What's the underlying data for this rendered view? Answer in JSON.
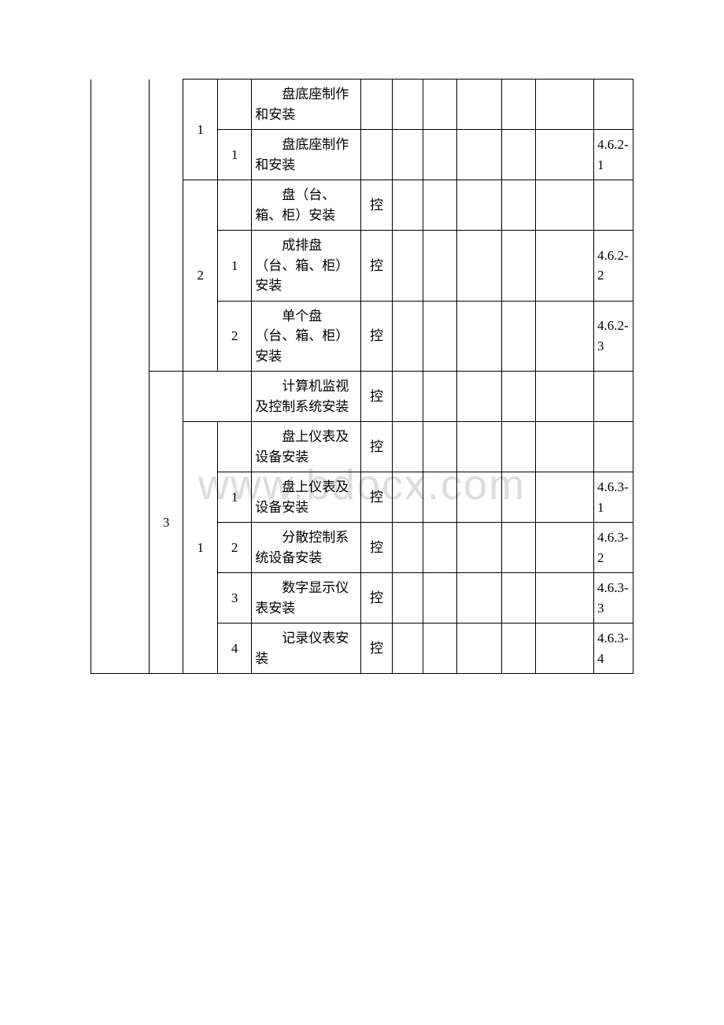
{
  "watermark": "www.bdocx.com",
  "rows": [
    {
      "c2": "",
      "c3": "",
      "c4": "",
      "c5": "　　盘底座制作和安装",
      "c6": "",
      "c12": ""
    },
    {
      "c2": "",
      "c3": "1",
      "c4": "1",
      "c5": "　　盘底座制作和安装",
      "c6": "",
      "c12": "4.6.2-1"
    },
    {
      "c2": "",
      "c3": "",
      "c4": "",
      "c5": "　　盘（台、箱、柜）安装",
      "c6": "控",
      "c12": ""
    },
    {
      "c2": "",
      "c3": "2",
      "c4": "1",
      "c5": "　　成排盘（台、箱、柜）安装",
      "c6": "控",
      "c12": "4.6.2-2"
    },
    {
      "c2": "",
      "c3": "",
      "c4": "2",
      "c5": "　　单个盘（台、箱、柜）安装",
      "c6": "控",
      "c12": "4.6.2-3"
    },
    {
      "c2": "",
      "c3": "",
      "c4": "",
      "c5": "　　计算机监视及控制系统安装",
      "c6": "控",
      "c12": ""
    },
    {
      "c2": "",
      "c3": "",
      "c4": "",
      "c5": "　　盘上仪表及设备安装",
      "c6": "控",
      "c12": ""
    },
    {
      "c2": "",
      "c3": "",
      "c4": "1",
      "c5": "　　盘上仪表及设备安装",
      "c6": "控",
      "c12": "4.6.3-1"
    },
    {
      "c2": "3",
      "c3": "1",
      "c4": "2",
      "c5": "　　分散控制系统设备安装",
      "c6": "控",
      "c12": "4.6.3-2"
    },
    {
      "c2": "",
      "c3": "",
      "c4": "3",
      "c5": "　　数字显示仪表安装",
      "c6": "控",
      "c12": "4.6.3-3"
    },
    {
      "c2": "",
      "c3": "",
      "c4": "4",
      "c5": "　　记录仪表安装",
      "c6": "控",
      "c12": "4.6.3-4"
    }
  ]
}
